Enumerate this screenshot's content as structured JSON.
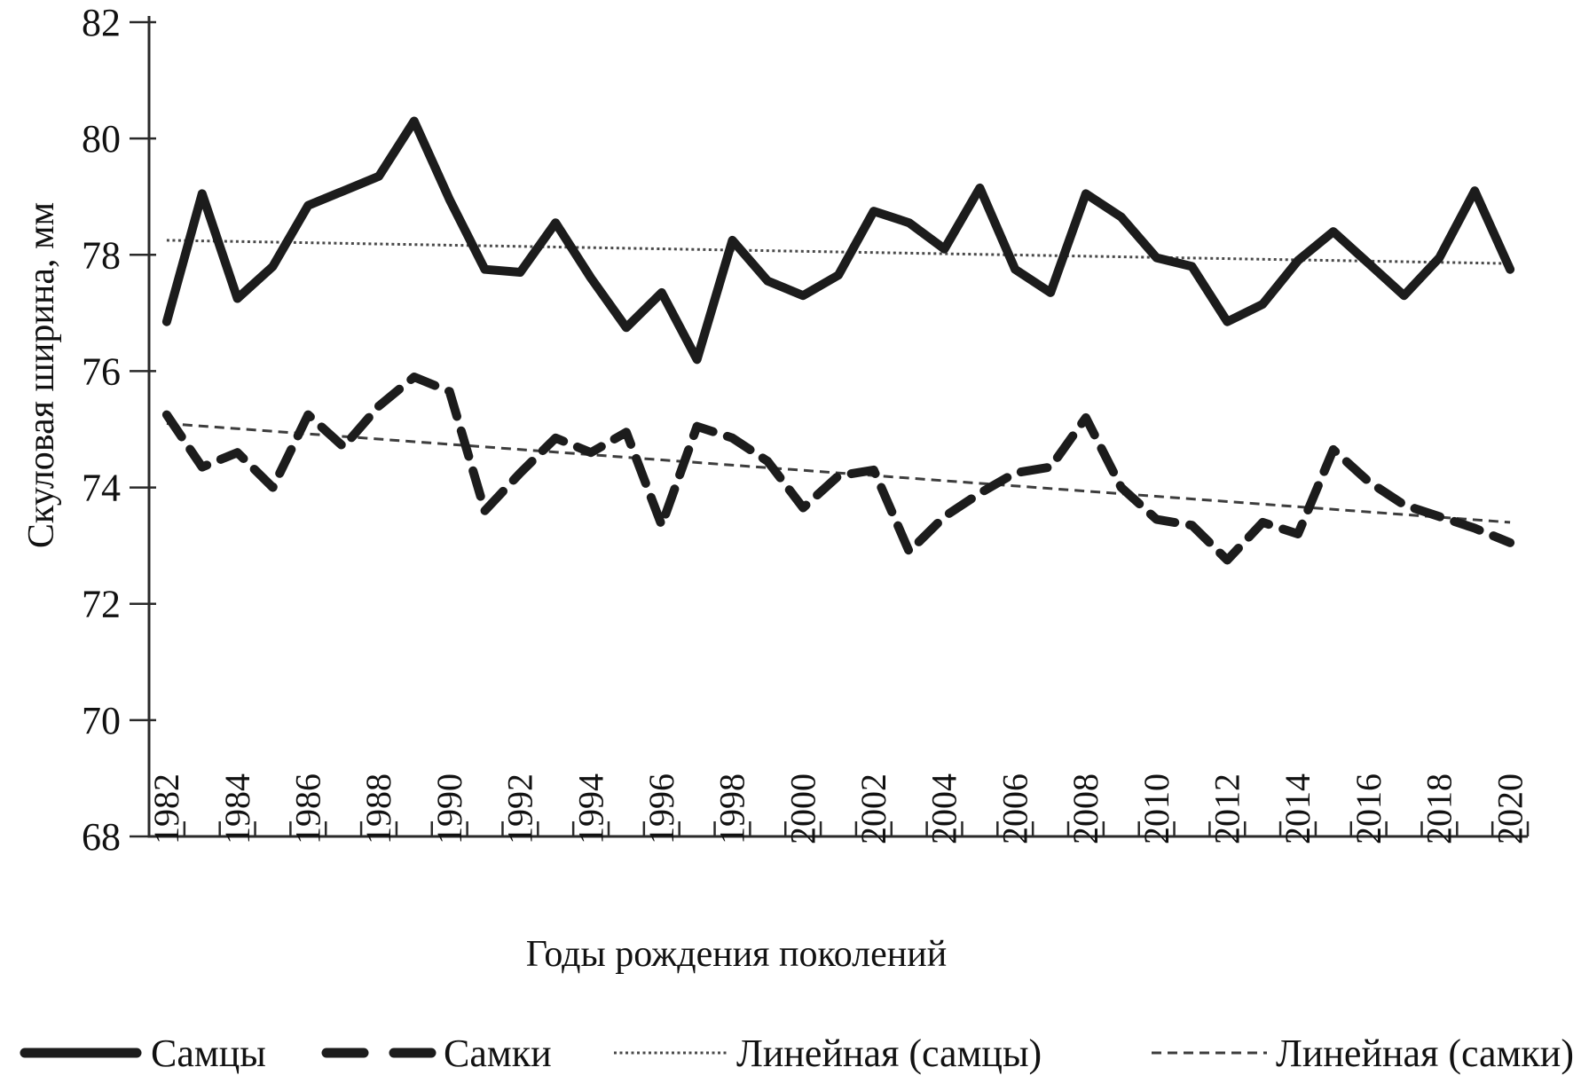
{
  "chart_data": {
    "type": "line",
    "title": "",
    "xlabel": "Годы рождения поколений",
    "ylabel": "Скуловая ширина, мм",
    "x": [
      1982,
      1983,
      1984,
      1985,
      1986,
      1987,
      1988,
      1989,
      1990,
      1991,
      1992,
      1993,
      1994,
      1995,
      1996,
      1997,
      1998,
      1999,
      2000,
      2001,
      2002,
      2003,
      2004,
      2005,
      2006,
      2007,
      2008,
      2009,
      2010,
      2011,
      2012,
      2013,
      2014,
      2015,
      2016,
      2017,
      2018,
      2019,
      2020
    ],
    "x_label_step": 2,
    "ylim": [
      68,
      82
    ],
    "y_tick_step": 2,
    "grid": false,
    "legend_position": "bottom",
    "series": [
      {
        "name": "Самцы",
        "kind": "data",
        "line": "solid-thick",
        "values": [
          76.85,
          79.05,
          77.25,
          77.8,
          78.85,
          79.1,
          79.35,
          80.3,
          78.95,
          77.75,
          77.7,
          78.55,
          77.6,
          76.75,
          77.35,
          76.2,
          78.25,
          77.55,
          77.3,
          77.65,
          78.75,
          78.55,
          78.1,
          79.15,
          77.75,
          77.35,
          79.05,
          78.65,
          77.95,
          77.8,
          76.85,
          77.15,
          77.9,
          78.4,
          77.85,
          77.3,
          77.95,
          79.1,
          77.75
        ]
      },
      {
        "name": "Самки",
        "kind": "data",
        "line": "dashed-thick",
        "values": [
          75.25,
          74.35,
          74.6,
          74.0,
          75.25,
          74.7,
          75.4,
          75.9,
          75.65,
          73.6,
          74.25,
          74.85,
          74.6,
          74.95,
          73.35,
          75.05,
          74.85,
          74.45,
          73.65,
          74.2,
          74.3,
          72.9,
          73.5,
          73.9,
          74.25,
          74.35,
          75.2,
          74.0,
          73.45,
          73.35,
          72.75,
          73.4,
          73.2,
          74.65,
          74.1,
          73.7,
          73.5,
          73.3,
          73.05
        ]
      },
      {
        "name": "Линейная (самцы)",
        "kind": "trend",
        "line": "dotted-thin",
        "trend_start": 78.25,
        "trend_end": 77.85
      },
      {
        "name": "Линейная (самки)",
        "kind": "trend",
        "line": "smalldash-thin",
        "trend_start": 75.1,
        "trend_end": 73.4
      }
    ]
  },
  "legend": {
    "items": [
      {
        "label": "Самцы",
        "swatch": "solid-thick-line"
      },
      {
        "label": "Самки",
        "swatch": "dashed-thick-line"
      },
      {
        "label": "Линейная (самцы)",
        "swatch": "dotted-thin-line"
      },
      {
        "label": "Линейная (самки)",
        "swatch": "smalldash-thin-line"
      }
    ]
  },
  "colors": {
    "series_line": "#1c1c1c",
    "trend_male": "#4a4a4a",
    "trend_female": "#3d3d3d",
    "axis": "#2a2a2a",
    "text": "#111111",
    "background": "#ffffff"
  }
}
